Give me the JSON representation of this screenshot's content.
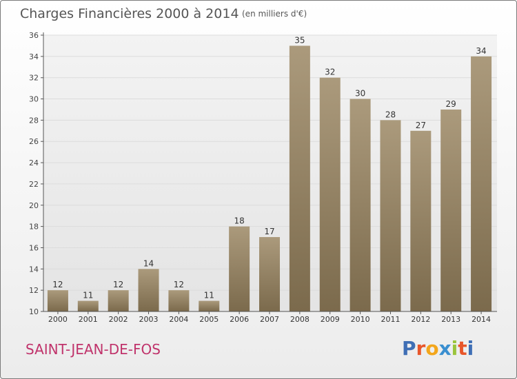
{
  "title": "Charges Financières 2000 à 2014",
  "subtitle": "(en milliers d'€)",
  "city": "SAINT-JEAN-DE-FOS",
  "logo": {
    "letters": [
      "P",
      "r",
      "o",
      "x",
      "i",
      "t",
      "i"
    ],
    "colors": [
      "#3f6fb5",
      "#e8562a",
      "#f3a61b",
      "#3a8fd0",
      "#9ac43c",
      "#e8562a",
      "#3f6fb5"
    ]
  },
  "colors": {
    "bar_light": "#ab9a7c",
    "bar_dark": "#7b6a4c",
    "grid": "#dcdcdc",
    "axis": "#555555"
  },
  "chart_data": {
    "type": "bar",
    "title": "Charges Financières 2000 à 2014",
    "subtitle": "(en milliers d'€)",
    "categories": [
      "2000",
      "2001",
      "2002",
      "2003",
      "2004",
      "2005",
      "2006",
      "2007",
      "2008",
      "2009",
      "2010",
      "2011",
      "2012",
      "2013",
      "2014"
    ],
    "values": [
      12,
      11,
      12,
      14,
      12,
      11,
      18,
      17,
      35,
      32,
      30,
      28,
      27,
      29,
      34
    ],
    "ylim": [
      10,
      36
    ],
    "yticks": [
      10,
      12,
      14,
      16,
      18,
      20,
      22,
      24,
      26,
      28,
      30,
      32,
      34,
      36
    ],
    "grid": true,
    "data_labels": true
  }
}
